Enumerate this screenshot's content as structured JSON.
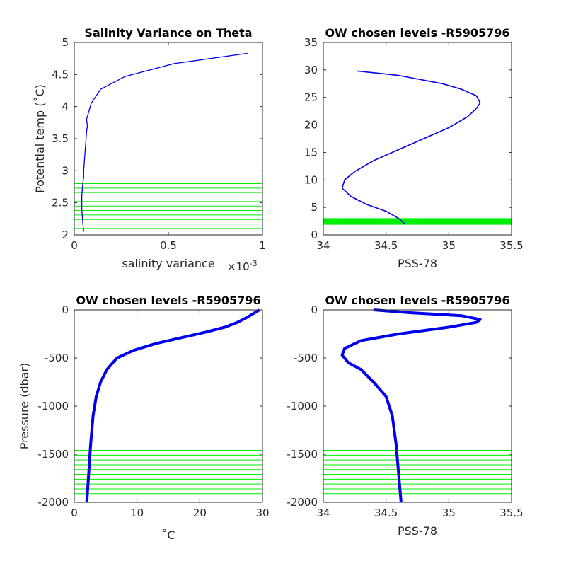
{
  "colors": {
    "profile": "#0000ee",
    "levels": "#00ee00",
    "axis": "#262626"
  },
  "chart_data": [
    {
      "id": "salvar",
      "type": "line",
      "title": "Salinity Variance on Theta",
      "xlabel": "salinity variance",
      "xexponent": "×10",
      "xexponent_power": "-3",
      "ylabel": "Potential temp (˚C)",
      "xlim": [
        0,
        1
      ],
      "ylim": [
        2,
        5
      ],
      "xticks": [
        "0",
        "0.5",
        "1"
      ],
      "xtick_values": [
        0,
        0.5,
        1
      ],
      "yticks": [
        "2",
        "2.5",
        "3",
        "3.5",
        "4",
        "4.5",
        "5"
      ],
      "ytick_values": [
        2,
        2.5,
        3,
        3.5,
        4,
        4.5,
        5
      ],
      "series": [
        {
          "x": [
            0.05,
            0.045,
            0.04,
            0.04,
            0.045,
            0.05,
            0.05,
            0.055,
            0.06,
            0.065,
            0.07,
            0.065,
            0.075,
            0.09,
            0.14,
            0.27,
            0.53,
            0.92
          ],
          "y": [
            2.05,
            2.2,
            2.4,
            2.6,
            2.8,
            2.9,
            3.0,
            3.2,
            3.4,
            3.6,
            3.7,
            3.8,
            3.9,
            4.05,
            4.27,
            4.47,
            4.67,
            4.83
          ]
        }
      ],
      "hlines": [
        2.1,
        2.17,
        2.24,
        2.31,
        2.38,
        2.45,
        2.52,
        2.59,
        2.66,
        2.73,
        2.8
      ]
    },
    {
      "id": "theta_sal",
      "type": "line",
      "title": "OW chosen levels -R5905796",
      "xlabel": "PSS-78",
      "ylabel": "",
      "xlim": [
        34,
        35.5
      ],
      "ylim": [
        0,
        35
      ],
      "xticks": [
        "34",
        "34.5",
        "35",
        "35.5"
      ],
      "xtick_values": [
        34,
        34.5,
        35,
        35.5
      ],
      "yticks": [
        "0",
        "5",
        "10",
        "15",
        "20",
        "25",
        "30",
        "35"
      ],
      "ytick_values": [
        0,
        5,
        10,
        15,
        20,
        25,
        30,
        35
      ],
      "series": [
        {
          "x": [
            34.65,
            34.6,
            34.5,
            34.35,
            34.22,
            34.15,
            34.17,
            34.25,
            34.4,
            34.6,
            34.8,
            35.0,
            35.15,
            35.22,
            35.25,
            35.22,
            35.1,
            34.95,
            34.6,
            34.27
          ],
          "y": [
            2.0,
            3.0,
            4.3,
            5.5,
            7.0,
            8.5,
            10.0,
            11.5,
            13.5,
            15.5,
            17.5,
            19.5,
            21.5,
            23.0,
            24.0,
            25.3,
            26.5,
            27.5,
            29.0,
            29.8
          ]
        }
      ],
      "hlines": [
        2.05,
        2.15,
        2.25,
        2.35,
        2.45,
        2.55,
        2.65,
        2.75,
        2.85
      ]
    },
    {
      "id": "pres_temp",
      "type": "line",
      "title": "OW chosen levels -R5905796",
      "xlabel": "˚C",
      "ylabel": "Pressure (dbar)",
      "xlim": [
        0,
        30
      ],
      "ylim": [
        -2000,
        0
      ],
      "xticks": [
        "0",
        "10",
        "20",
        "30"
      ],
      "xtick_values": [
        0,
        10,
        20,
        30
      ],
      "yticks": [
        "-2000",
        "-1500",
        "-1000",
        "-500",
        "0"
      ],
      "ytick_values": [
        -2000,
        -1500,
        -1000,
        -500,
        0
      ],
      "series": [
        {
          "x": [
            2.0,
            2.3,
            2.6,
            3.0,
            3.5,
            4.2,
            5.2,
            6.8,
            9.5,
            13.0,
            17.0,
            21.0,
            24.0,
            26.0,
            27.5,
            28.5,
            29.5
          ],
          "y": [
            -2000,
            -1700,
            -1400,
            -1100,
            -900,
            -750,
            -620,
            -500,
            -420,
            -350,
            -290,
            -230,
            -180,
            -130,
            -80,
            -40,
            0
          ]
        }
      ],
      "hlines": [
        -1460,
        -1510,
        -1560,
        -1610,
        -1660,
        -1710,
        -1760,
        -1810,
        -1860,
        -1910
      ]
    },
    {
      "id": "pres_sal",
      "type": "line",
      "title": "OW chosen levels -R5905796",
      "xlabel": "PSS-78",
      "ylabel": "",
      "xlim": [
        34,
        35.5
      ],
      "ylim": [
        -2000,
        0
      ],
      "xticks": [
        "34",
        "34.5",
        "35",
        "35.5"
      ],
      "xtick_values": [
        34,
        34.5,
        35,
        35.5
      ],
      "yticks": [
        "-2000",
        "-1500",
        "-1000",
        "-500",
        "0"
      ],
      "ytick_values": [
        -2000,
        -1500,
        -1000,
        -500,
        0
      ],
      "series": [
        {
          "x": [
            34.62,
            34.6,
            34.58,
            34.55,
            34.5,
            34.4,
            34.3,
            34.2,
            34.15,
            34.17,
            34.3,
            34.6,
            35.0,
            35.22,
            35.25,
            35.1,
            34.7,
            34.4
          ],
          "y": [
            -2000,
            -1700,
            -1400,
            -1100,
            -900,
            -750,
            -620,
            -550,
            -470,
            -400,
            -320,
            -250,
            -180,
            -130,
            -100,
            -60,
            -30,
            0
          ]
        }
      ],
      "hlines": [
        -1460,
        -1510,
        -1560,
        -1610,
        -1660,
        -1710,
        -1760,
        -1810,
        -1860,
        -1910
      ]
    }
  ]
}
